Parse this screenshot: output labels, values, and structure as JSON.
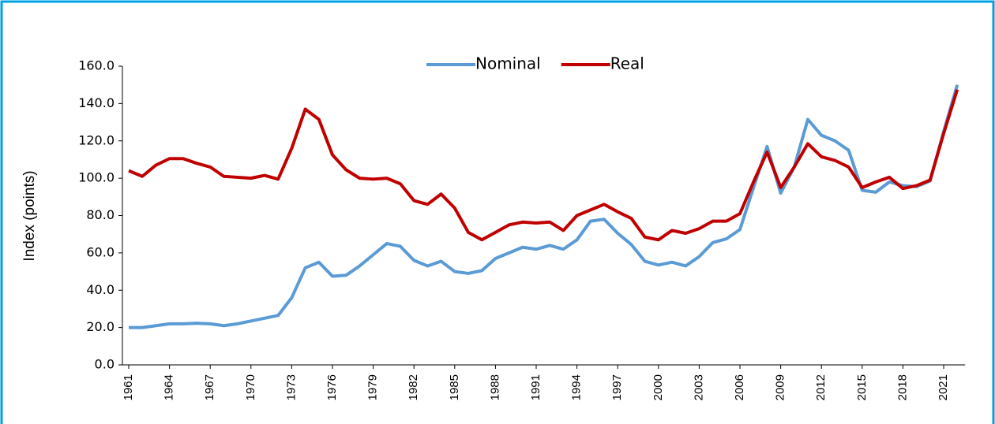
{
  "chart_data": {
    "type": "line",
    "ylabel": "Index (points)",
    "categories": [
      "1961",
      null,
      null,
      "1964",
      null,
      null,
      "1967",
      null,
      null,
      "1970",
      null,
      null,
      "1973",
      null,
      null,
      "1976",
      null,
      null,
      "1979",
      null,
      null,
      "1982",
      null,
      null,
      "1985",
      null,
      null,
      "1988",
      null,
      null,
      "1991",
      null,
      null,
      "1994",
      null,
      null,
      "1997",
      null,
      null,
      "2000",
      null,
      null,
      "2003",
      null,
      null,
      "2006",
      null,
      null,
      "2009",
      null,
      null,
      "2012",
      null,
      null,
      "2015",
      null,
      null,
      "2018",
      null,
      null,
      "2021",
      null
    ],
    "series": [
      {
        "name": "Nominal",
        "color": "#5b9bd5",
        "values": [
          20,
          20,
          21,
          22,
          22,
          22.3,
          22,
          21,
          22,
          23.5,
          25,
          26.5,
          36,
          52,
          55,
          47.5,
          48,
          53,
          59,
          65,
          63.5,
          56,
          53,
          55.5,
          50,
          49,
          50.5,
          57,
          60,
          63,
          62,
          64,
          62,
          67,
          77,
          78,
          70.5,
          64.5,
          55.5,
          53.5,
          55,
          53,
          58,
          65.5,
          67.5,
          72.5,
          95,
          117,
          92,
          106,
          131.5,
          123,
          120,
          115,
          93.5,
          92.5,
          98,
          96,
          95.5,
          98.5,
          125,
          150
        ]
      },
      {
        "name": "Real",
        "color": "#c00000",
        "values": [
          104,
          101,
          107,
          110.5,
          110.5,
          108,
          106,
          101,
          100.5,
          100,
          101.5,
          99.5,
          116,
          137,
          131.5,
          112.5,
          104.5,
          100,
          99.5,
          100,
          97,
          88,
          86,
          91.5,
          84,
          71,
          67,
          71,
          75,
          76.5,
          76,
          76.5,
          72,
          80,
          83,
          86,
          82,
          78.5,
          68.5,
          67,
          72,
          70.5,
          73,
          77,
          77,
          81,
          98,
          114,
          95,
          106,
          118.5,
          111.5,
          109.5,
          106,
          95,
          98,
          100.5,
          94.5,
          96,
          99,
          124,
          147.5
        ]
      }
    ],
    "ylim": [
      0,
      160
    ],
    "yticks": [
      {
        "value": 0,
        "label": "0.0"
      },
      {
        "value": 20,
        "label": "20.0"
      },
      {
        "value": 40,
        "label": "40.0"
      },
      {
        "value": 60,
        "label": "60.0"
      },
      {
        "value": 80,
        "label": "80.0"
      },
      {
        "value": 100,
        "label": "100.0"
      },
      {
        "value": 120,
        "label": "120.0"
      },
      {
        "value": 140,
        "label": "140.0"
      },
      {
        "value": 160,
        "label": "160.0"
      }
    ],
    "legend": "top"
  }
}
